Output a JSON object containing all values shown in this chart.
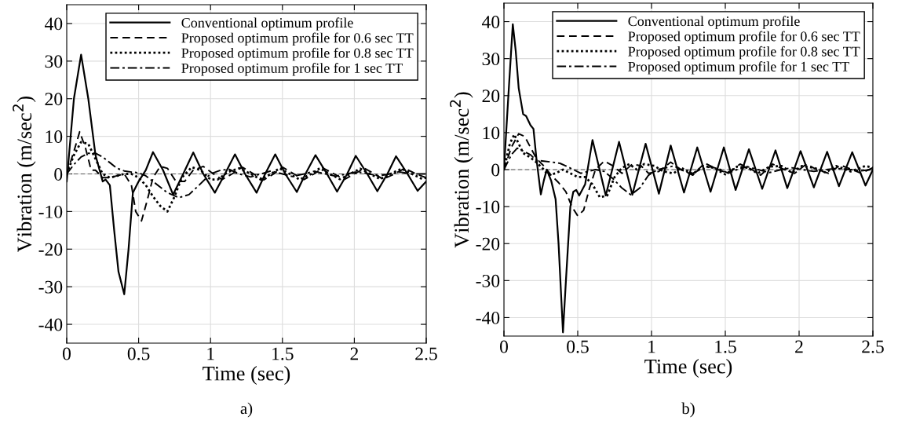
{
  "chart_data": [
    {
      "type": "line",
      "xlabel": "Time (sec)",
      "ylabel": "Vibration (m/sec$^{2}$)",
      "annotations": [
        "a)"
      ],
      "xlim": [
        0,
        2.5
      ],
      "xticks": [
        0,
        0.5,
        1,
        1.5,
        2,
        2.5
      ],
      "ylim": [
        -45,
        45
      ],
      "yticks": [
        -40,
        -30,
        -20,
        -10,
        0,
        10,
        20,
        30,
        40
      ],
      "grid": true,
      "legend": "top right",
      "ref_lines": [
        {
          "axis": "y",
          "value": 0,
          "color": "#555555",
          "line_style": "dashed"
        }
      ],
      "series": [
        {
          "name": "Conventional optimum profile",
          "color": "#000000",
          "line_style": "solid",
          "x": [
            0,
            0.05,
            0.1,
            0.15,
            0.2,
            0.25,
            0.27,
            0.3,
            0.33,
            0.36,
            0.38,
            0.4,
            0.43,
            0.46,
            0.5,
            0.55,
            0.6,
            0.67,
            0.74,
            0.81,
            0.88,
            0.95,
            1.03,
            1.1,
            1.17,
            1.24,
            1.32,
            1.38,
            1.45,
            1.52,
            1.6,
            1.66,
            1.73,
            1.81,
            1.88,
            1.95,
            2.01,
            2.09,
            2.16,
            2.23,
            2.29,
            2.37,
            2.44,
            2.5
          ],
          "values": [
            -2,
            20,
            31.7,
            20,
            5,
            -2,
            -1.5,
            -3,
            -15,
            -26,
            -29,
            -32,
            -20,
            -5,
            -2,
            1,
            5.8,
            1,
            -5.5,
            0,
            5.7,
            0,
            -5,
            0,
            5.2,
            0,
            -5,
            0,
            5.2,
            0,
            -4.8,
            0,
            5,
            0,
            -4.7,
            0,
            4.8,
            0,
            -4.6,
            0,
            4.7,
            0,
            -4.5,
            -2
          ]
        },
        {
          "name": "Proposed optimum profile for 0.6 sec TT",
          "color": "#000000",
          "line_style": "dashed",
          "x": [
            0,
            0.05,
            0.09,
            0.13,
            0.17,
            0.2,
            0.25,
            0.3,
            0.35,
            0.4,
            0.45,
            0.48,
            0.52,
            0.56,
            0.6,
            0.65,
            0.7,
            0.76,
            0.82,
            0.88,
            0.95,
            1.02,
            1.08,
            1.15,
            1.22,
            1.3,
            1.37,
            1.44,
            1.5,
            1.58,
            1.65,
            1.72,
            1.78,
            1.86,
            1.93,
            2,
            2.07,
            2.14,
            2.2,
            2.28,
            2.35,
            2.43,
            2.5
          ],
          "values": [
            0,
            6,
            11.2,
            7,
            1,
            1,
            -1,
            -1,
            -0.5,
            0,
            -3,
            -10,
            -12.5,
            -7,
            -1,
            2,
            1.5,
            -2,
            -2,
            1,
            2,
            0,
            -1.5,
            0,
            1.8,
            0,
            -1.6,
            0,
            1.8,
            0,
            -1.5,
            0,
            1.6,
            0,
            -1.5,
            0,
            1.5,
            0,
            -1.4,
            0,
            1.5,
            0,
            -1
          ]
        },
        {
          "name": "Proposed optimum profile for 0.8 sec TT",
          "color": "#000000",
          "line_style": "dotted",
          "x": [
            0,
            0.05,
            0.1,
            0.15,
            0.2,
            0.25,
            0.3,
            0.35,
            0.4,
            0.45,
            0.5,
            0.55,
            0.6,
            0.65,
            0.7,
            0.75,
            0.8,
            0.87,
            0.93,
            1,
            1.05,
            1.12,
            1.2,
            1.28,
            1.35,
            1.42,
            1.48,
            1.55,
            1.62,
            1.7,
            1.76,
            1.83,
            1.9,
            1.97,
            2.04,
            2.11,
            2.18,
            2.25,
            2.33,
            2.4,
            2.47,
            2.5
          ],
          "values": [
            0,
            5,
            8.5,
            8,
            4,
            0,
            -1,
            -0.5,
            0,
            0,
            -1,
            -3,
            -6,
            -8.5,
            -10,
            -6,
            -1,
            1.8,
            1,
            -1.5,
            -1.5,
            0.5,
            1.5,
            0,
            -1.5,
            0,
            1.5,
            0,
            -1.5,
            0,
            1.5,
            0,
            -1.4,
            0,
            1.4,
            0,
            -1.4,
            0,
            1.4,
            0,
            -1.3,
            -1
          ]
        },
        {
          "name": "Proposed optimum profile for 1 sec TT",
          "color": "#000000",
          "line_style": "dashdot",
          "x": [
            0,
            0.05,
            0.1,
            0.15,
            0.2,
            0.25,
            0.3,
            0.35,
            0.4,
            0.45,
            0.5,
            0.55,
            0.6,
            0.65,
            0.7,
            0.78,
            0.85,
            0.92,
            1,
            1.07,
            1.13,
            1.2,
            1.28,
            1.35,
            1.42,
            1.5,
            1.57,
            1.65,
            1.72,
            1.8,
            1.87,
            1.95,
            2.02,
            2.1,
            2.17,
            2.25,
            2.32,
            2.4,
            2.5
          ],
          "values": [
            0,
            2.5,
            4.5,
            5.5,
            5.5,
            4.5,
            3,
            1.5,
            0.8,
            0.5,
            0.3,
            -0.5,
            -2,
            -3.5,
            -5,
            -6.3,
            -5.5,
            -3,
            0,
            1,
            1.2,
            0,
            -0.8,
            0,
            0.8,
            0,
            -0.7,
            0,
            0.7,
            0,
            -0.6,
            0,
            0.6,
            0,
            -0.5,
            0,
            0.5,
            0,
            0
          ]
        }
      ]
    },
    {
      "type": "line",
      "xlabel": "Time (sec)",
      "ylabel": "Vibration (m/sec$^{2}$)",
      "annotations": [
        "b)"
      ],
      "xlim": [
        0,
        2.5
      ],
      "xticks": [
        0,
        0.5,
        1,
        1.5,
        2,
        2.5
      ],
      "ylim": [
        -45,
        45
      ],
      "yticks": [
        -40,
        -30,
        -20,
        -10,
        0,
        10,
        20,
        30,
        40
      ],
      "grid": true,
      "legend": "top right",
      "ref_lines": [
        {
          "axis": "y",
          "value": 0,
          "color": "#555555",
          "line_style": "dashed"
        }
      ],
      "series": [
        {
          "name": "Conventional optimum profile",
          "color": "#000000",
          "line_style": "solid",
          "x": [
            0,
            0.03,
            0.06,
            0.08,
            0.1,
            0.13,
            0.15,
            0.18,
            0.2,
            0.22,
            0.25,
            0.27,
            0.29,
            0.32,
            0.35,
            0.37,
            0.4,
            0.42,
            0.45,
            0.47,
            0.49,
            0.51,
            0.55,
            0.6,
            0.69,
            0.78,
            0.87,
            0.96,
            1.05,
            1.13,
            1.22,
            1.31,
            1.4,
            1.49,
            1.57,
            1.66,
            1.75,
            1.84,
            1.92,
            2.01,
            2.1,
            2.19,
            2.27,
            2.36,
            2.45,
            2.5
          ],
          "values": [
            0,
            20,
            39.3,
            32,
            22,
            15,
            14.5,
            12,
            11,
            3,
            -6.7,
            -3,
            0,
            -3,
            -8,
            -20,
            -44,
            -30,
            -10,
            -6,
            -5.5,
            -7,
            -4,
            8,
            -7,
            7.5,
            -6.8,
            7,
            -6.5,
            6.5,
            -6.2,
            6,
            -6,
            6,
            -5.5,
            5.5,
            -5.2,
            5.2,
            -5,
            5,
            -4.8,
            4.8,
            -4.5,
            4.7,
            -4.3,
            0
          ]
        },
        {
          "name": "Proposed optimum profile for 0.6 sec TT",
          "color": "#000000",
          "line_style": "dashed",
          "x": [
            0,
            0.05,
            0.1,
            0.14,
            0.18,
            0.22,
            0.27,
            0.32,
            0.37,
            0.42,
            0.46,
            0.5,
            0.54,
            0.58,
            0.62,
            0.68,
            0.74,
            0.8,
            0.87,
            0.93,
            0.98,
            1.05,
            1.13,
            1.2,
            1.28,
            1.36,
            1.45,
            1.52,
            1.6,
            1.68,
            1.74,
            1.82,
            1.9,
            1.97,
            2.05,
            2.12,
            2.2,
            2.28,
            2.36,
            2.42,
            2.5
          ],
          "values": [
            0,
            6,
            9.7,
            9,
            6,
            3,
            1,
            -1.5,
            -3.5,
            -6,
            -10,
            -12.5,
            -11,
            -5,
            0,
            2.3,
            1,
            -1,
            1.5,
            1,
            -1,
            -0.5,
            2,
            0,
            -1.5,
            1.8,
            0,
            -1,
            1.5,
            0,
            -1.5,
            1.5,
            0,
            -1,
            1.5,
            0,
            -1,
            1.2,
            0,
            -1,
            0.5
          ]
        },
        {
          "name": "Proposed optimum profile for 0.8 sec TT",
          "color": "#000000",
          "line_style": "dotted",
          "x": [
            0,
            0.04,
            0.07,
            0.1,
            0.13,
            0.17,
            0.22,
            0.27,
            0.3,
            0.35,
            0.4,
            0.45,
            0.5,
            0.55,
            0.6,
            0.65,
            0.7,
            0.75,
            0.8,
            0.85,
            0.9,
            0.95,
            1.02,
            1.08,
            1.15,
            1.2,
            1.28,
            1.35,
            1.42,
            1.5,
            1.58,
            1.65,
            1.72,
            1.8,
            1.88,
            1.95,
            2.02,
            2.1,
            2.18,
            2.25,
            2.35,
            2.45,
            2.5
          ],
          "values": [
            0,
            7,
            9.5,
            7,
            4.5,
            3.5,
            2,
            0,
            -1.5,
            -1,
            0,
            -1,
            -2,
            -2,
            -4,
            -7.5,
            -7,
            -2,
            0.5,
            1.5,
            0,
            1.5,
            1,
            -0.5,
            -1,
            0.5,
            -1.2,
            1,
            0.5,
            -1.3,
            0.8,
            0.5,
            -1,
            0.8,
            1,
            -0.8,
            1,
            0.5,
            -0.8,
            1,
            -0.5,
            1,
            0.5
          ]
        },
        {
          "name": "Proposed optimum profile for 1 sec TT",
          "color": "#000000",
          "line_style": "dashdot",
          "x": [
            0,
            0.05,
            0.09,
            0.13,
            0.18,
            0.22,
            0.27,
            0.33,
            0.38,
            0.42,
            0.47,
            0.52,
            0.57,
            0.62,
            0.68,
            0.74,
            0.8,
            0.86,
            0.92,
            0.98,
            1.04,
            1.1,
            1.15,
            1.2,
            1.27,
            1.33,
            1.4,
            1.47,
            1.52,
            1.58,
            1.65,
            1.72,
            1.8,
            1.88,
            1.95,
            2.02,
            2.1,
            2.18,
            2.25,
            2.35,
            2.42,
            2.5
          ],
          "values": [
            0,
            4,
            5.8,
            5,
            4,
            2.5,
            2.3,
            2,
            1.7,
            1,
            0,
            -1,
            -0.5,
            0,
            -0.5,
            -2.5,
            -5,
            -6.8,
            -5,
            -1.5,
            0,
            0.5,
            1,
            0,
            -1.2,
            0,
            0.8,
            0,
            -1,
            0,
            0.8,
            0,
            -0.8,
            0,
            0.5,
            0,
            -0.5,
            0,
            0.3,
            0,
            -0.3,
            0
          ]
        }
      ]
    }
  ]
}
